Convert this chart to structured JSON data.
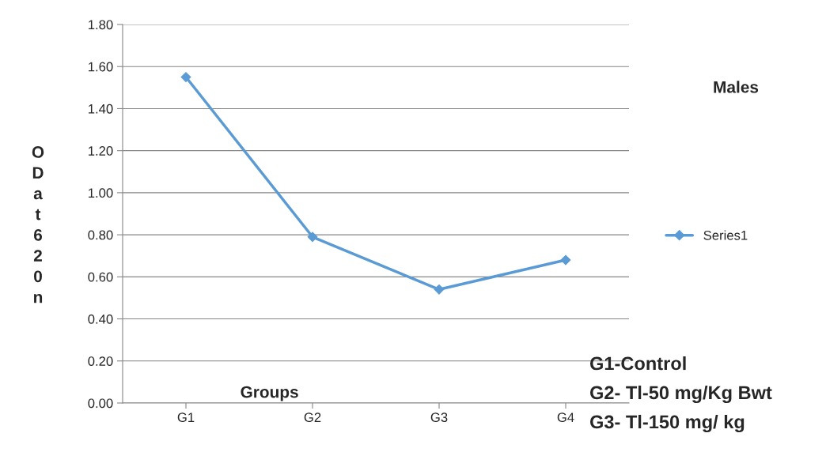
{
  "chart_data": {
    "type": "line",
    "xlabel": "Groups",
    "ylabel": "OD at 620n",
    "categories": [
      "G1",
      "G2",
      "G3",
      "G4"
    ],
    "series": [
      {
        "name": "Series1",
        "color": "#5b9bd5",
        "values": [
          1.55,
          0.79,
          0.54,
          0.68
        ]
      }
    ],
    "ylim": [
      0,
      1.8
    ],
    "yticks": [
      {
        "value": 0,
        "label": "0.00"
      },
      {
        "value": 0.2,
        "label": "0.20"
      },
      {
        "value": 0.4,
        "label": "0.40"
      },
      {
        "value": 0.6,
        "label": "0.60"
      },
      {
        "value": 0.8,
        "label": "0.80"
      },
      {
        "value": 1.0,
        "label": "1.00"
      },
      {
        "value": 1.2,
        "label": "1.20"
      },
      {
        "value": 1.4,
        "label": "1.40"
      },
      {
        "value": 1.6,
        "label": "1.60"
      },
      {
        "value": 1.8,
        "label": "1.80"
      }
    ],
    "grid": "y",
    "legend": "right",
    "marker": "diamond",
    "line_style": "solid",
    "annotations": [
      "Males",
      "G1-Control",
      "G2- Tl-50 mg/Kg Bwt",
      "G3- Tl-150 mg/ kg"
    ]
  }
}
